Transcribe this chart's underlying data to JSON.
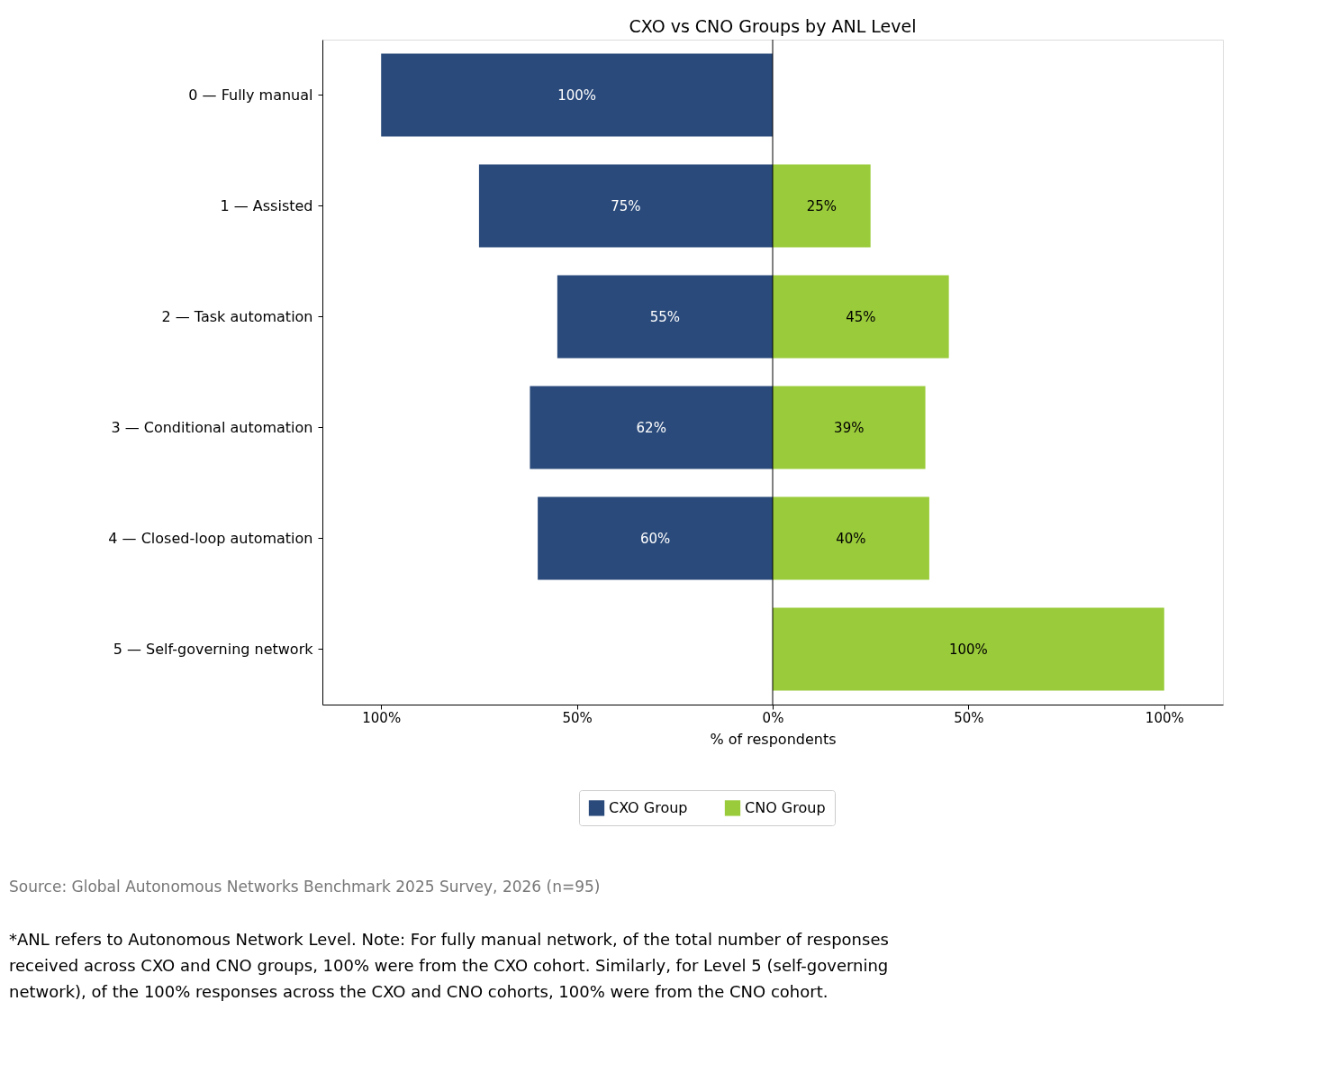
{
  "chart_data": {
    "type": "bar",
    "orientation": "horizontal",
    "title": "CXO vs CNO Groups by ANL Level",
    "xlabel": "% of respondents",
    "categories": [
      "0 — Fully manual",
      "1 — Assisted",
      "2 — Task automation",
      "3 — Conditional automation",
      "4 — Closed-loop automation",
      "5 — Self-governing network"
    ],
    "series": [
      {
        "name": "CXO Group",
        "color": "#2a4a7b",
        "base": [
          -100,
          -75,
          -55,
          -62,
          -60,
          null
        ],
        "values": [
          100,
          75,
          55,
          62,
          60,
          null
        ],
        "value_labels": [
          "100%",
          "75%",
          "55%",
          "62%",
          "60%",
          null
        ]
      },
      {
        "name": "CNO Group",
        "color": "#9acb3a",
        "values": [
          null,
          25,
          45,
          39,
          40,
          100
        ],
        "value_labels": [
          null,
          "25%",
          "45%",
          "39%",
          "40%",
          "100%"
        ]
      }
    ],
    "xlim": [
      -115,
      115
    ],
    "xticks": [
      {
        "value": -100,
        "label": "100%"
      },
      {
        "value": -50,
        "label": "50%"
      },
      {
        "value": 0,
        "label": "0%"
      },
      {
        "value": 50,
        "label": "50%"
      },
      {
        "value": 100,
        "label": "100%"
      }
    ],
    "ref_lines": [
      {
        "axis": "x",
        "value": 0,
        "color": "#000000"
      }
    ],
    "grid": false,
    "legend": "bottom",
    "annotations": [
      "Source: Global Autonomous Networks Benchmark 2025 Survey, 2026 (n=95)",
      "*ANL refers to Autonomous Network Level. Note: For fully manual network, of the total number of responses received across CXO and CNO groups, 100% were from the CXO cohort. Similarly, for Level 5 (self-governing network), of the 100% responses across the CXO and CNO cohorts, 100% were from the CNO cohort."
    ]
  }
}
